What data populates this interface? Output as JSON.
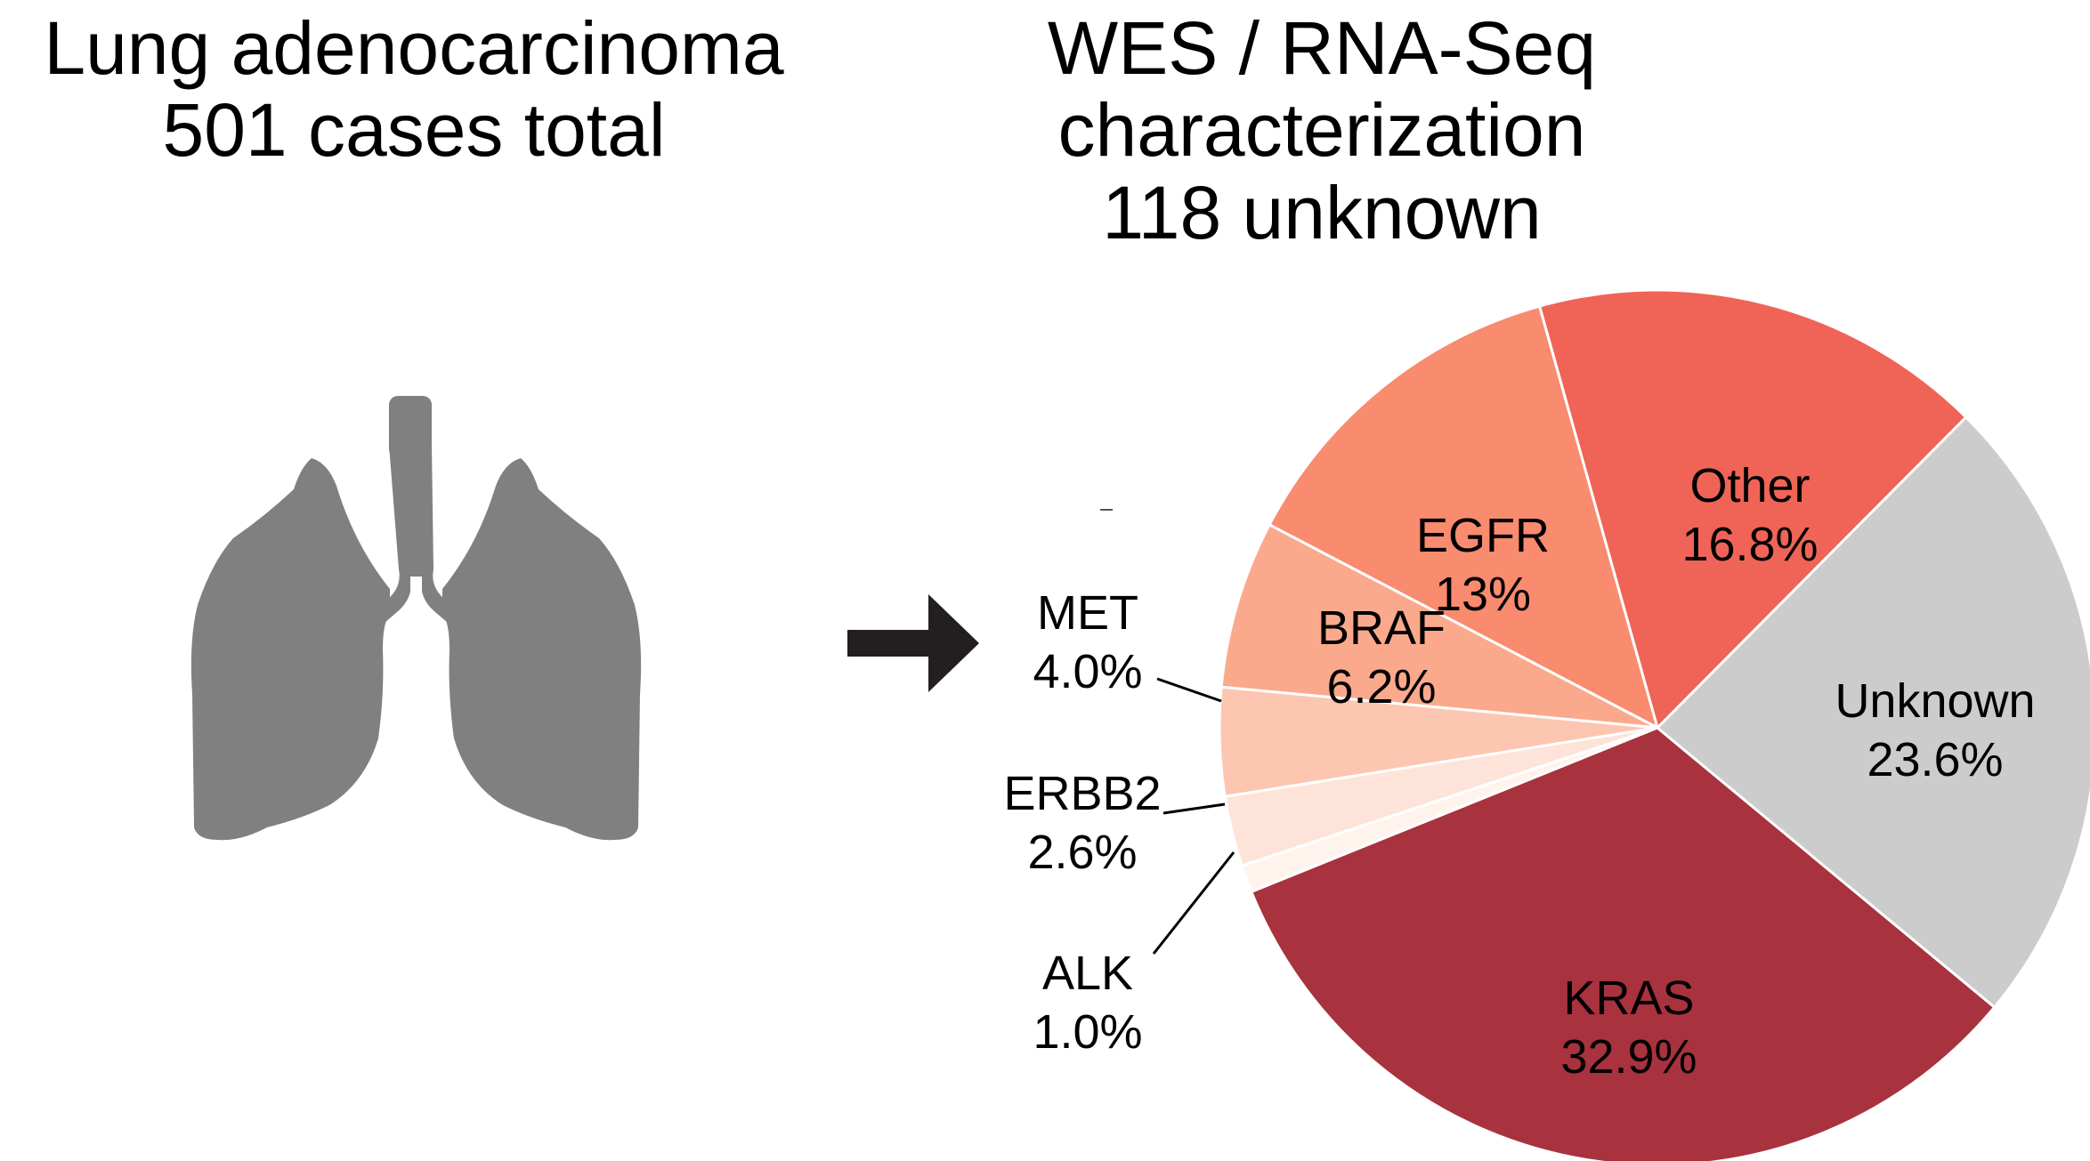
{
  "left_title": {
    "line1": "Lung adenocarcinoma",
    "line2": "501 cases total"
  },
  "right_title": {
    "line1": "WES / RNA-Seq",
    "line2": "characterization",
    "line3": "118 unknown"
  },
  "icons": {
    "lungs": "lungs-icon",
    "arrow": "right-arrow-icon"
  },
  "colors": {
    "lungs": "#808080",
    "arrow": "#231f20"
  },
  "chart_data": {
    "type": "pie",
    "title": "",
    "slices": [
      {
        "label": "KRAS",
        "pct_label": "32.9%",
        "value": 32.9,
        "color": "#a8323e",
        "label_color": "#000000"
      },
      {
        "label": "Unknown",
        "pct_label": "23.6%",
        "value": 23.6,
        "color": "#cccccc",
        "label_color": "#000000"
      },
      {
        "label": "Other",
        "pct_label": "16.8%",
        "value": 16.8,
        "color": "#ef6456",
        "label_color": "#000000"
      },
      {
        "label": "EGFR",
        "pct_label": "13%",
        "value": 13.0,
        "color": "#f98b6f",
        "label_color": "#000000"
      },
      {
        "label": "BRAF",
        "pct_label": "6.2%",
        "value": 6.2,
        "color": "#fba98c",
        "label_color": "#000000"
      },
      {
        "label": "MET",
        "pct_label": "4.0%",
        "value": 4.0,
        "color": "#fcc6b1",
        "label_color": "#000000"
      },
      {
        "label": "ERBB2",
        "pct_label": "2.6%",
        "value": 2.6,
        "color": "#fee3d8",
        "label_color": "#000000"
      },
      {
        "label": "ALK",
        "pct_label": "1.0%",
        "value": 1.0,
        "color": "#fff3ee",
        "label_color": "#000000"
      }
    ],
    "start_slice": "KRAS",
    "direction": "counterclockwise",
    "outside_labels": [
      "MET",
      "ERBB2",
      "ALK"
    ]
  }
}
